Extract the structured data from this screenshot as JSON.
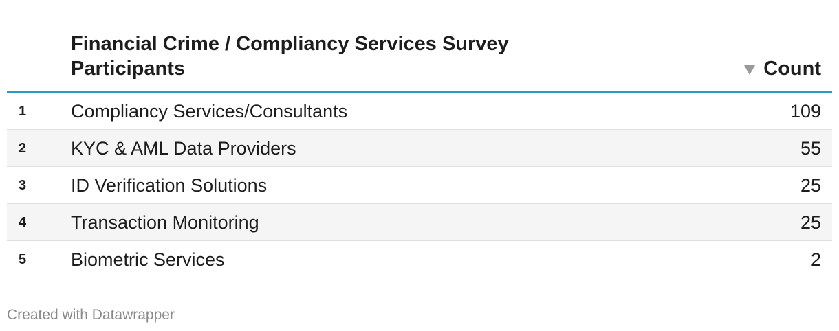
{
  "chart_data": {
    "type": "table",
    "columns": [
      "Financial Crime / Compliancy Services Survey Participants",
      "Count"
    ],
    "sort": {
      "column": "Count",
      "direction": "descending"
    },
    "rows": [
      {
        "rank": "1",
        "name": "Compliancy Services/Consultants",
        "count": 109
      },
      {
        "rank": "2",
        "name": "KYC & AML Data Providers",
        "count": 55
      },
      {
        "rank": "3",
        "name": "ID Verification Solutions",
        "count": 25
      },
      {
        "rank": "4",
        "name": "Transaction Monitoring",
        "count": 25
      },
      {
        "rank": "5",
        "name": "Biometric Services",
        "count": 2
      }
    ]
  },
  "header": {
    "title": "Financial Crime / Compliancy Services Survey Participants",
    "count_label": "Count",
    "sort_icon": "sort-descending-icon"
  },
  "footer": {
    "credit": "Created with Datawrapper"
  },
  "colors": {
    "accent": "#2a9bc7",
    "text": "#1d1d1d",
    "muted": "#8a8a8a",
    "row_alt": "#f5f5f5"
  }
}
